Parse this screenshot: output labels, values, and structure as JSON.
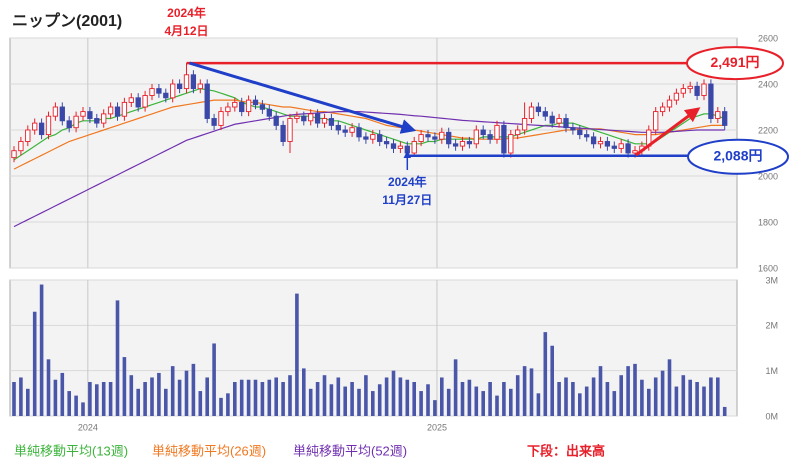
{
  "chart_data": [
    {
      "type": "candlestick",
      "title": "ニップン(2001)",
      "open": [
        2080,
        2110,
        2150,
        2200,
        2230,
        2180,
        2260,
        2300,
        2240,
        2210,
        2260,
        2280,
        2250,
        2230,
        2270,
        2300,
        2260,
        2320,
        2340,
        2300,
        2350,
        2380,
        2360,
        2340,
        2400,
        2380,
        2440,
        2380,
        2400,
        2250,
        2220,
        2280,
        2300,
        2320,
        2280,
        2330,
        2310,
        2290,
        2260,
        2220,
        2150,
        2250,
        2260,
        2240,
        2270,
        2230,
        2250,
        2220,
        2200,
        2190,
        2210,
        2170,
        2160,
        2180,
        2150,
        2140,
        2120,
        2130,
        2100,
        2150,
        2180,
        2170,
        2160,
        2190,
        2140,
        2130,
        2150,
        2140,
        2200,
        2180,
        2160,
        2220,
        2100,
        2180,
        2200,
        2250,
        2300,
        2280,
        2260,
        2230,
        2250,
        2210,
        2200,
        2180,
        2170,
        2140,
        2150,
        2130,
        2120,
        2140,
        2100,
        2110,
        2130,
        2200,
        2280,
        2300,
        2330,
        2360,
        2380,
        2390,
        2350,
        2400,
        2250,
        2280
      ],
      "high": [
        2130,
        2170,
        2220,
        2250,
        2250,
        2280,
        2320,
        2320,
        2260,
        2280,
        2300,
        2300,
        2270,
        2290,
        2320,
        2320,
        2340,
        2360,
        2360,
        2370,
        2400,
        2400,
        2380,
        2420,
        2420,
        2491,
        2460,
        2420,
        2420,
        2270,
        2300,
        2320,
        2340,
        2340,
        2350,
        2350,
        2330,
        2310,
        2280,
        2240,
        2270,
        2280,
        2280,
        2290,
        2290,
        2270,
        2270,
        2240,
        2220,
        2230,
        2230,
        2190,
        2200,
        2200,
        2170,
        2160,
        2150,
        2150,
        2170,
        2200,
        2200,
        2190,
        2210,
        2210,
        2160,
        2170,
        2170,
        2220,
        2220,
        2200,
        2240,
        2240,
        2200,
        2220,
        2320,
        2320,
        2320,
        2300,
        2280,
        2270,
        2270,
        2230,
        2220,
        2200,
        2190,
        2170,
        2170,
        2150,
        2160,
        2160,
        2130,
        2150,
        2220,
        2300,
        2320,
        2350,
        2380,
        2400,
        2410,
        2410,
        2420,
        2420,
        2300,
        2300
      ],
      "low": [
        2060,
        2090,
        2130,
        2180,
        2160,
        2160,
        2240,
        2220,
        2190,
        2190,
        2240,
        2230,
        2210,
        2210,
        2250,
        2240,
        2240,
        2300,
        2280,
        2280,
        2330,
        2340,
        2320,
        2320,
        2360,
        2360,
        2360,
        2360,
        2230,
        2200,
        2200,
        2260,
        2280,
        2260,
        2260,
        2290,
        2270,
        2240,
        2200,
        2130,
        2100,
        2230,
        2220,
        2220,
        2210,
        2210,
        2200,
        2180,
        2170,
        2170,
        2150,
        2140,
        2140,
        2130,
        2120,
        2100,
        2100,
        2088,
        2090,
        2130,
        2150,
        2140,
        2140,
        2120,
        2110,
        2110,
        2120,
        2120,
        2160,
        2140,
        2140,
        2080,
        2080,
        2160,
        2180,
        2230,
        2260,
        2240,
        2210,
        2210,
        2190,
        2180,
        2160,
        2150,
        2120,
        2120,
        2110,
        2100,
        2100,
        2080,
        2080,
        2090,
        2110,
        2180,
        2260,
        2280,
        2310,
        2340,
        2360,
        2330,
        2330,
        2230,
        2230,
        2200
      ],
      "close": [
        2110,
        2150,
        2200,
        2230,
        2180,
        2260,
        2300,
        2240,
        2210,
        2260,
        2280,
        2250,
        2230,
        2270,
        2300,
        2260,
        2320,
        2340,
        2300,
        2350,
        2380,
        2360,
        2340,
        2400,
        2380,
        2440,
        2380,
        2400,
        2250,
        2220,
        2280,
        2300,
        2320,
        2280,
        2330,
        2310,
        2290,
        2260,
        2220,
        2150,
        2250,
        2260,
        2240,
        2270,
        2230,
        2250,
        2220,
        2200,
        2190,
        2210,
        2170,
        2160,
        2180,
        2150,
        2140,
        2120,
        2130,
        2100,
        2150,
        2180,
        2170,
        2160,
        2190,
        2140,
        2130,
        2150,
        2140,
        2200,
        2180,
        2160,
        2220,
        2100,
        2180,
        2200,
        2250,
        2300,
        2280,
        2260,
        2230,
        2250,
        2210,
        2200,
        2180,
        2170,
        2140,
        2150,
        2130,
        2120,
        2140,
        2100,
        2110,
        2130,
        2200,
        2280,
        2300,
        2330,
        2360,
        2380,
        2390,
        2350,
        2400,
        2250,
        2280,
        2220
      ],
      "up_color": "#e8202a",
      "down_color": "#3b48a8",
      "series": [
        {
          "name": "単純移動平均(13週)",
          "color": "#3cb43c",
          "values": [
            2070,
            2090,
            2110,
            2130,
            2150,
            2170,
            2180,
            2200,
            2210,
            2230,
            2240,
            2240,
            2240,
            2250,
            2250,
            2260,
            2270,
            2280,
            2290,
            2300,
            2310,
            2320,
            2330,
            2340,
            2350,
            2360,
            2370,
            2380,
            2375,
            2370,
            2360,
            2350,
            2340,
            2320,
            2310,
            2300,
            2300,
            2290,
            2280,
            2270,
            2260,
            2260,
            2260,
            2260,
            2250,
            2250,
            2240,
            2240,
            2230,
            2220,
            2210,
            2200,
            2190,
            2180,
            2170,
            2160,
            2150,
            2140,
            2140,
            2140,
            2150,
            2150,
            2160,
            2160,
            2160,
            2160,
            2160,
            2160,
            2170,
            2170,
            2170,
            2170,
            2170,
            2180,
            2190,
            2200,
            2210,
            2220,
            2220,
            2230,
            2230,
            2230,
            2220,
            2210,
            2200,
            2190,
            2180,
            2170,
            2160,
            2150,
            2140,
            2140,
            2140,
            2150,
            2170,
            2190,
            2210,
            2230,
            2250,
            2260,
            2270,
            2270,
            2260,
            2250
          ]
        },
        {
          "name": "単純移動平均(26週)",
          "color": "#f07820",
          "values": [
            2030,
            2045,
            2060,
            2075,
            2090,
            2105,
            2120,
            2135,
            2150,
            2160,
            2170,
            2180,
            2190,
            2200,
            2210,
            2220,
            2230,
            2240,
            2250,
            2260,
            2270,
            2280,
            2290,
            2300,
            2305,
            2310,
            2315,
            2320,
            2325,
            2330,
            2330,
            2330,
            2330,
            2325,
            2320,
            2320,
            2315,
            2310,
            2305,
            2300,
            2300,
            2295,
            2290,
            2285,
            2280,
            2280,
            2275,
            2270,
            2265,
            2260,
            2255,
            2250,
            2240,
            2230,
            2220,
            2215,
            2210,
            2205,
            2200,
            2195,
            2190,
            2185,
            2180,
            2175,
            2170,
            2165,
            2165,
            2160,
            2160,
            2160,
            2160,
            2160,
            2165,
            2165,
            2170,
            2175,
            2180,
            2185,
            2190,
            2195,
            2200,
            2200,
            2205,
            2205,
            2205,
            2205,
            2200,
            2195,
            2190,
            2185,
            2180,
            2180,
            2180,
            2180,
            2185,
            2190,
            2195,
            2200,
            2205,
            2210,
            2215,
            2220,
            2220,
            2220
          ]
        },
        {
          "name": "単純移動平均(52週)",
          "color": "#7030b0",
          "values": [
            1780,
            1795,
            1810,
            1825,
            1840,
            1855,
            1870,
            1885,
            1900,
            1915,
            1930,
            1945,
            1960,
            1975,
            1990,
            2005,
            2020,
            2035,
            2050,
            2065,
            2080,
            2095,
            2110,
            2125,
            2140,
            2155,
            2165,
            2175,
            2185,
            2195,
            2205,
            2215,
            2225,
            2230,
            2235,
            2240,
            2245,
            2250,
            2255,
            2260,
            2265,
            2268,
            2270,
            2272,
            2274,
            2276,
            2278,
            2280,
            2280,
            2280,
            2280,
            2278,
            2276,
            2274,
            2272,
            2270,
            2268,
            2265,
            2262,
            2260,
            2257,
            2254,
            2251,
            2248,
            2245,
            2242,
            2240,
            2238,
            2236,
            2234,
            2232,
            2230,
            2228,
            2226,
            2224,
            2222,
            2220,
            2218,
            2216,
            2214,
            2212,
            2210,
            2208,
            2206,
            2204,
            2202,
            2200,
            2198,
            2196,
            2194,
            2192,
            2190,
            2190,
            2190,
            2190,
            2192,
            2194,
            2196,
            2198,
            2200,
            2200,
            2200,
            2200,
            2200
          ]
        }
      ],
      "ylim": [
        1600,
        2600
      ],
      "yticks": [
        1600,
        1800,
        2000,
        2200,
        2400,
        2600
      ],
      "xticks": [
        {
          "value": 10.7,
          "label": "2024"
        },
        {
          "value": 61.3,
          "label": "2025"
        }
      ],
      "annotations": [
        {
          "text": "2024年",
          "color": "#e8202a"
        },
        {
          "text": "4月12日",
          "color": "#e8202a"
        },
        {
          "text": "2024年",
          "color": "#1f3fc8"
        },
        {
          "text": "11月27日",
          "color": "#1f3fc8"
        },
        {
          "text": "2,491円",
          "color": "#e8202a"
        },
        {
          "text": "2,088円",
          "color": "#1f3fc8"
        }
      ]
    },
    {
      "type": "bar",
      "title": "下段：出来高",
      "color": "#4a56a8",
      "values": [
        750000,
        850000,
        600000,
        2300000,
        2900000,
        1250000,
        800000,
        950000,
        550000,
        450000,
        300000,
        750000,
        700000,
        750000,
        750000,
        2550000,
        1300000,
        900000,
        600000,
        750000,
        850000,
        950000,
        600000,
        1100000,
        800000,
        1000000,
        1150000,
        550000,
        850000,
        1600000,
        400000,
        500000,
        750000,
        800000,
        800000,
        800000,
        750000,
        800000,
        850000,
        750000,
        900000,
        2700000,
        1050000,
        600000,
        750000,
        900000,
        700000,
        850000,
        650000,
        750000,
        600000,
        900000,
        550000,
        700000,
        850000,
        1000000,
        850000,
        800000,
        750000,
        550000,
        700000,
        350000,
        850000,
        600000,
        1250000,
        750000,
        800000,
        650000,
        550000,
        750000,
        450000,
        750000,
        600000,
        900000,
        1100000,
        1050000,
        500000,
        1850000,
        1550000,
        750000,
        850000,
        750000,
        500000,
        650000,
        850000,
        1100000,
        750000,
        550000,
        900000,
        1100000,
        1150000,
        800000,
        600000,
        850000,
        1000000,
        1250000,
        650000,
        900000,
        800000,
        750000,
        650000,
        850000,
        850000,
        200000
      ],
      "ylim": [
        0,
        3000000
      ],
      "yticks": [
        {
          "value": 0,
          "label": "0M"
        },
        {
          "value": 1000000,
          "label": "1M"
        },
        {
          "value": 2000000,
          "label": "2M"
        },
        {
          "value": 3000000,
          "label": "3M"
        }
      ]
    }
  ]
}
